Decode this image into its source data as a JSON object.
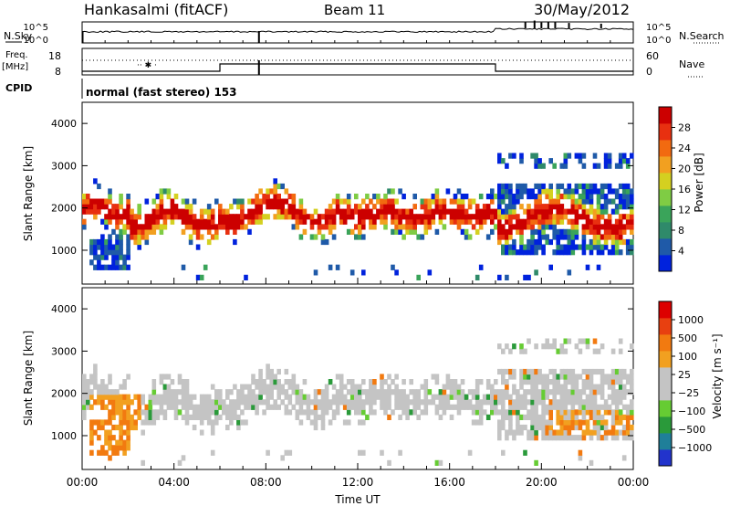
{
  "header": {
    "station": "Hankasalmi (fitACF)",
    "beam": "Beam 11",
    "date": "30/May/2012"
  },
  "side_labels": {
    "nsky": "N.Sky",
    "nsearch": "N.Search",
    "freq_line1": "Freq.",
    "freq_line2": "[MHz]",
    "nave": "Nave",
    "cpid": "CPID"
  },
  "cpid_text": "normal (fast stereo) 153",
  "colors": {
    "power_scale": [
      "#0022dd",
      "#1f5aa8",
      "#2f8a6a",
      "#3aa45a",
      "#7fcc44",
      "#d4d020",
      "#f2a020",
      "#f26a10",
      "#e83010",
      "#cc0000"
    ],
    "velocity_scale": [
      "#2233cc",
      "#1f7f99",
      "#2a9a3a",
      "#66cc33",
      "#c4c4c4",
      "#c4c4c4",
      "#f2a020",
      "#f27a10",
      "#e84010",
      "#dd0000"
    ]
  },
  "chart_data": [
    {
      "type": "line",
      "name": "noise-panel",
      "left_ticks": [
        "10^5",
        "10^0"
      ],
      "right_ticks": [
        "10^5",
        "10^0"
      ],
      "left_label": "N.Sky",
      "right_label": "N.Search"
    },
    {
      "type": "line",
      "name": "frequency-panel",
      "left_ticks": [
        "18",
        "8"
      ],
      "right_ticks": [
        "60",
        "0"
      ],
      "left_label": "Freq. [MHz]",
      "right_label": "Nave",
      "frequency_steps": [
        {
          "from": "00:00",
          "to": "06:00",
          "level": "low"
        },
        {
          "from": "06:00",
          "to": "18:00",
          "level": "high"
        },
        {
          "from": "18:00",
          "to": "00:00",
          "level": "low"
        }
      ]
    },
    {
      "type": "heatmap",
      "name": "power",
      "ylabel": "Slant Range [km]",
      "ylim": [
        200,
        4500
      ],
      "yticks": [
        "1000",
        "2000",
        "3000",
        "4000"
      ],
      "xlim": [
        "00:00",
        "00:00"
      ],
      "colorbar_label": "Power [dB]",
      "colorbar_ticks": [
        "28",
        "24",
        "20",
        "16",
        "12",
        "8",
        "4"
      ]
    },
    {
      "type": "heatmap",
      "name": "velocity",
      "ylabel": "Slant Range [km]",
      "ylim": [
        200,
        4500
      ],
      "yticks": [
        "1000",
        "2000",
        "3000",
        "4000"
      ],
      "xlabel": "Time UT",
      "xticks": [
        "00:00",
        "04:00",
        "08:00",
        "12:00",
        "16:00",
        "20:00",
        "00:00"
      ],
      "colorbar_label": "Velocity [m s⁻¹]",
      "colorbar_ticks": [
        "1000",
        "500",
        "100",
        "25",
        "−25",
        "−100",
        "−500",
        "−1000"
      ]
    }
  ]
}
